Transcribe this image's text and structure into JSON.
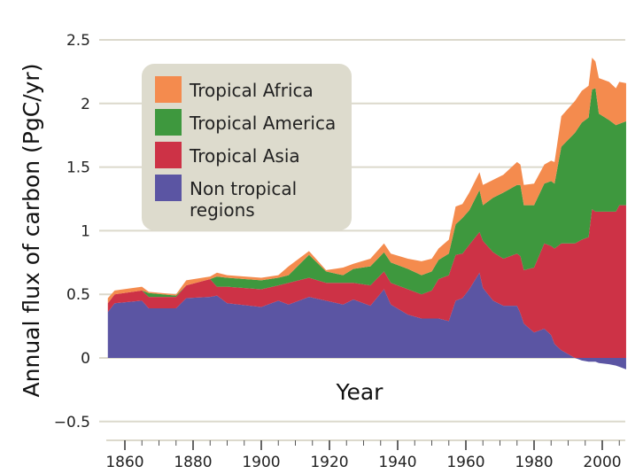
{
  "chart_data": {
    "type": "area",
    "stacked": true,
    "title": "",
    "xlabel": "Year",
    "ylabel": "Annual flux of carbon (PgC/yr)",
    "xlim": [
      1855,
      2007
    ],
    "ylim": [
      -0.5,
      2.5
    ],
    "grid": "horizontal",
    "legend_placement": "top-left",
    "x_ticks": [
      1860,
      1880,
      1900,
      1920,
      1940,
      1960,
      1980,
      2000
    ],
    "x_tick_labels": [
      "1860",
      "1880",
      "1900",
      "1920",
      "1940",
      "1960",
      "1980",
      "2000"
    ],
    "y_ticks": [
      -0.5,
      0,
      0.5,
      1,
      1.5,
      2,
      2.5
    ],
    "y_tick_labels": [
      "−0.5",
      "0",
      "0.5",
      "1",
      "1.5",
      "2",
      "2.5"
    ],
    "x": [
      1855,
      1857,
      1865,
      1867,
      1875,
      1878,
      1885,
      1887,
      1890,
      1900,
      1905,
      1908,
      1914,
      1919,
      1924,
      1927,
      1932,
      1936,
      1938,
      1943,
      1947,
      1950,
      1952,
      1955,
      1957,
      1959,
      1961,
      1964,
      1965,
      1968,
      1971,
      1975,
      1976,
      1977,
      1980,
      1983,
      1985,
      1986,
      1988,
      1992,
      1994,
      1996,
      1997,
      1998,
      1999,
      2002,
      2004,
      2005,
      2007
    ],
    "series": [
      {
        "name": "Non tropical regions",
        "color": "#5b55a3",
        "values": [
          0.36,
          0.43,
          0.45,
          0.39,
          0.39,
          0.47,
          0.48,
          0.49,
          0.43,
          0.4,
          0.45,
          0.42,
          0.48,
          0.45,
          0.42,
          0.46,
          0.41,
          0.54,
          0.42,
          0.34,
          0.31,
          0.31,
          0.31,
          0.29,
          0.45,
          0.47,
          0.54,
          0.67,
          0.55,
          0.45,
          0.41,
          0.41,
          0.35,
          0.27,
          0.2,
          0.23,
          0.18,
          0.11,
          0.06,
          0.0,
          -0.02,
          -0.03,
          -0.03,
          -0.03,
          -0.04,
          -0.05,
          -0.06,
          -0.07,
          -0.09
        ]
      },
      {
        "name": "Tropical Asia",
        "color": "#cd3246",
        "values": [
          0.07,
          0.07,
          0.08,
          0.09,
          0.09,
          0.1,
          0.14,
          0.07,
          0.13,
          0.14,
          0.12,
          0.17,
          0.15,
          0.14,
          0.17,
          0.13,
          0.16,
          0.14,
          0.17,
          0.2,
          0.19,
          0.22,
          0.31,
          0.36,
          0.36,
          0.35,
          0.35,
          0.32,
          0.37,
          0.38,
          0.37,
          0.41,
          0.45,
          0.42,
          0.51,
          0.67,
          0.7,
          0.75,
          0.84,
          0.9,
          0.93,
          0.95,
          1.17,
          1.15,
          1.15,
          1.15,
          1.15,
          1.2,
          1.2
        ]
      },
      {
        "name": "Tropical America",
        "color": "#3e983e",
        "values": [
          0,
          0,
          0,
          0.03,
          0.01,
          0,
          0,
          0.08,
          0.07,
          0.07,
          0.06,
          0.06,
          0.18,
          0.09,
          0.06,
          0.11,
          0.15,
          0.15,
          0.16,
          0.16,
          0.15,
          0.15,
          0.15,
          0.17,
          0.24,
          0.28,
          0.27,
          0.33,
          0.28,
          0.43,
          0.52,
          0.54,
          0.56,
          0.51,
          0.49,
          0.47,
          0.51,
          0.51,
          0.76,
          0.87,
          0.92,
          0.94,
          0.94,
          0.97,
          0.77,
          0.72,
          0.68,
          0.64,
          0.66
        ]
      },
      {
        "name": "Tropical Africa",
        "color": "#f48b4e",
        "values": [
          0.04,
          0.03,
          0.03,
          0.01,
          0.01,
          0.04,
          0.02,
          0.03,
          0.02,
          0.02,
          0.02,
          0.07,
          0.03,
          0.01,
          0.06,
          0.04,
          0.06,
          0.07,
          0.07,
          0.08,
          0.11,
          0.1,
          0.09,
          0.11,
          0.14,
          0.11,
          0.14,
          0.14,
          0.16,
          0.14,
          0.14,
          0.18,
          0.16,
          0.16,
          0.17,
          0.15,
          0.16,
          0.17,
          0.24,
          0.25,
          0.25,
          0.25,
          0.25,
          0.21,
          0.28,
          0.3,
          0.29,
          0.33,
          0.3
        ]
      }
    ],
    "legend": [
      "Tropical Africa",
      "Tropical America",
      "Tropical Asia",
      "Non tropical",
      "regions"
    ]
  },
  "colors": {
    "grid": "#dcd9cc",
    "legend_bg": "#dddbcd"
  }
}
